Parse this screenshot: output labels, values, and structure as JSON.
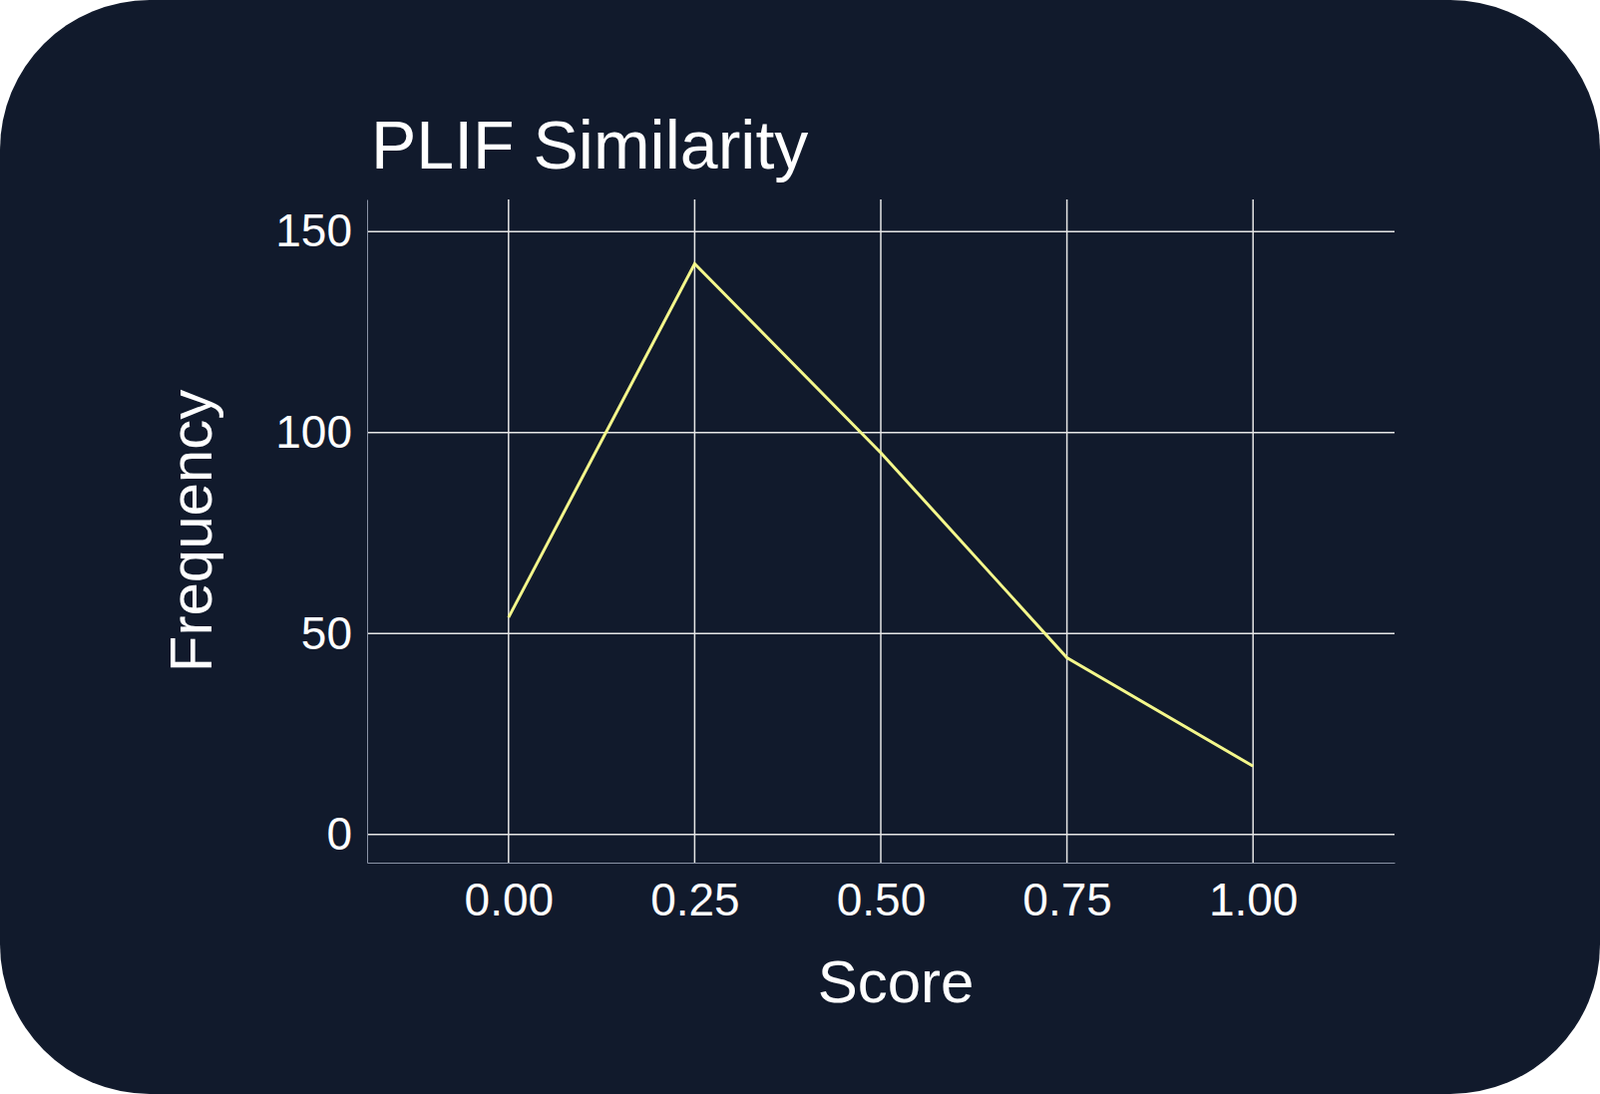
{
  "chart_data": {
    "type": "line",
    "title": "PLIF Similarity",
    "x_label": "Score",
    "y_label": "Frequency",
    "x": [
      0,
      0.25,
      0.5,
      0.75,
      1.0
    ],
    "values": [
      54,
      142,
      95,
      44,
      17
    ],
    "color": "#f4f78b",
    "xlim": [
      -0.19,
      1.19
    ],
    "xticks": [
      {
        "value": 0,
        "label": "0.00"
      },
      {
        "value": 0.25,
        "label": "0.25"
      },
      {
        "value": 0.5,
        "label": "0.50"
      },
      {
        "value": 0.75,
        "label": "0.75"
      },
      {
        "value": 1.0,
        "label": "1.00"
      }
    ],
    "ylim": [
      -7,
      158
    ],
    "yticks": [
      0,
      50,
      100,
      150
    ],
    "grid": true
  }
}
